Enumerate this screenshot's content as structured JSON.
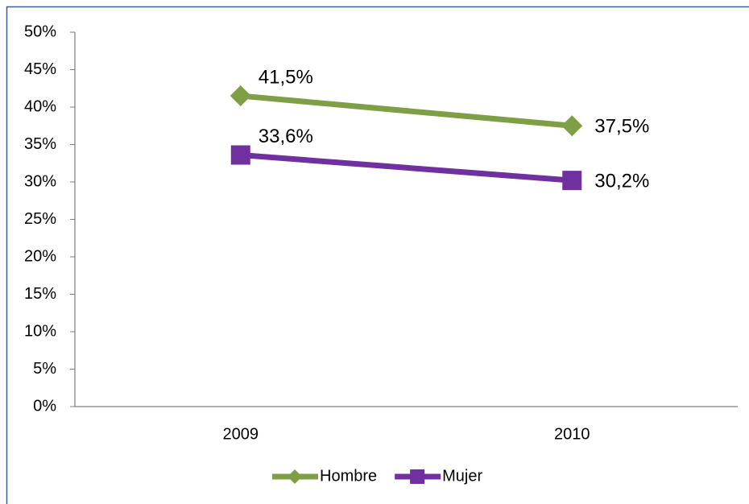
{
  "chart_data": {
    "type": "line",
    "categories": [
      "2009",
      "2010"
    ],
    "series": [
      {
        "name": "Hombre",
        "color": "#7f9f46",
        "marker": "diamond",
        "values": [
          41.5,
          37.5
        ],
        "value_labels": [
          "41,5%",
          "37,5%"
        ]
      },
      {
        "name": "Mujer",
        "color": "#7030a0",
        "marker": "square",
        "values": [
          33.6,
          30.2
        ],
        "value_labels": [
          "33,6%",
          "30,2%"
        ]
      }
    ],
    "ylim": [
      0,
      50
    ],
    "yticks": [
      {
        "value": 0,
        "label": "0%"
      },
      {
        "value": 5,
        "label": "5%"
      },
      {
        "value": 10,
        "label": "10%"
      },
      {
        "value": 15,
        "label": "15%"
      },
      {
        "value": 20,
        "label": "20%"
      },
      {
        "value": 25,
        "label": "25%"
      },
      {
        "value": 30,
        "label": "30%"
      },
      {
        "value": 35,
        "label": "35%"
      },
      {
        "value": 40,
        "label": "40%"
      },
      {
        "value": 45,
        "label": "45%"
      },
      {
        "value": 50,
        "label": "50%"
      }
    ],
    "grid": false,
    "legend": "bottom"
  }
}
